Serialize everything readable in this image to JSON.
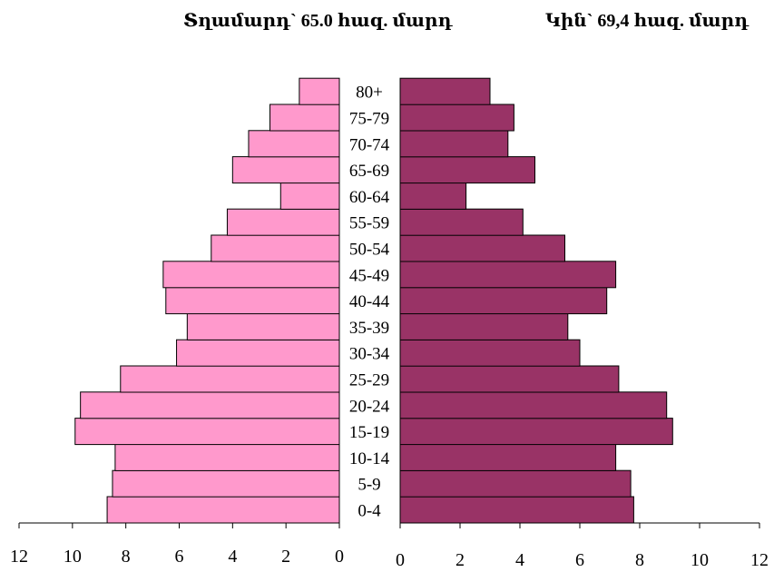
{
  "chart_data": {
    "type": "bar",
    "orientation": "horizontal",
    "subtype": "population-pyramid",
    "title_left": "Տղամարդ` 65.0 հազ. մարդ",
    "title_right": "Կին` 69,4 հազ. մարդ",
    "categories": [
      "0-4",
      "5-9",
      "10-14",
      "15-19",
      "20-24",
      "25-29",
      "30-34",
      "35-39",
      "40-44",
      "45-49",
      "50-54",
      "55-59",
      "60-64",
      "65-69",
      "70-74",
      "75-79",
      "80+"
    ],
    "series": [
      {
        "name": "Տղամարդ",
        "side": "left",
        "color": "#ff99cc",
        "values": [
          8.7,
          8.5,
          8.4,
          9.9,
          9.7,
          8.2,
          6.1,
          5.7,
          6.5,
          6.6,
          4.8,
          4.2,
          2.2,
          4.0,
          3.4,
          2.6,
          1.5
        ]
      },
      {
        "name": "Կին",
        "side": "right",
        "color": "#993366",
        "values": [
          7.8,
          7.7,
          7.2,
          9.1,
          8.9,
          7.3,
          6.0,
          5.6,
          6.9,
          7.2,
          5.5,
          4.1,
          2.2,
          4.5,
          3.6,
          3.8,
          3.0
        ]
      }
    ],
    "xlim_left": [
      0,
      12
    ],
    "xlim_right": [
      0,
      12
    ],
    "xticks": [
      0,
      2,
      4,
      6,
      8,
      10,
      12
    ],
    "grid": false,
    "legend": "none"
  }
}
